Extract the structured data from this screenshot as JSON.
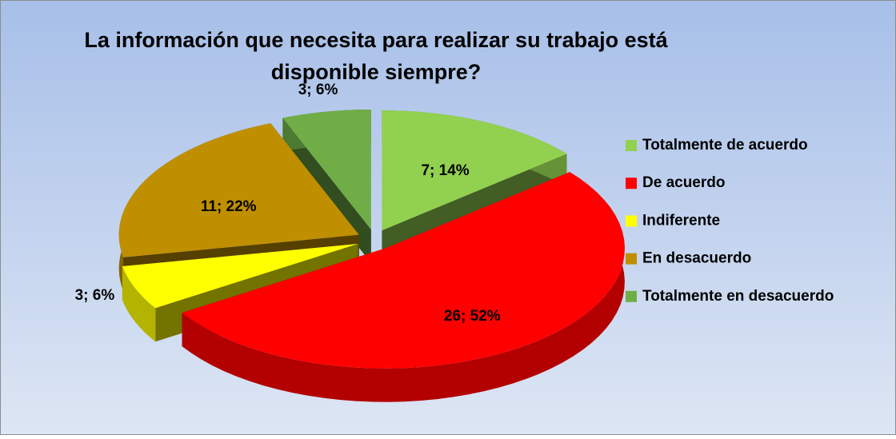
{
  "chart_data": {
    "type": "pie",
    "title": "La información que necesita para realizar su trabajo está disponible siempre?",
    "categories": [
      "Totalmente de acuerdo",
      "De acuerdo",
      "Indiferente",
      "En desacuerdo",
      "Totalmente en desacuerdo"
    ],
    "values": [
      7,
      26,
      3,
      11,
      3
    ],
    "value_labels": [
      "7; 14%",
      "26; 52%",
      "3; 6%",
      "11; 22%",
      "3; 6%"
    ],
    "colors": [
      "#92d050",
      "#ff0000",
      "#ffff00",
      "#bf8f00",
      "#70ad47"
    ],
    "legend": "right"
  }
}
